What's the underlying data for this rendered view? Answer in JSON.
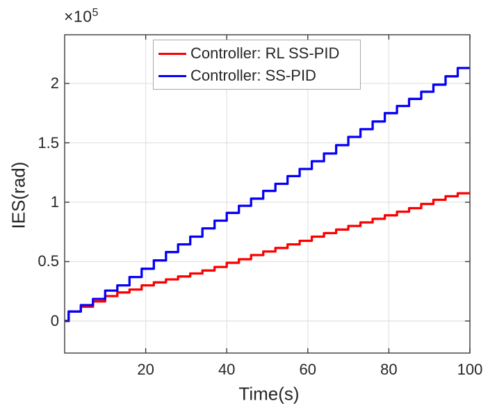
{
  "figure": {
    "background": "#ffffff",
    "axis_color": "#3a3a3a",
    "grid_color": "#e2e2e2",
    "text_color": "#262626"
  },
  "chart_data": {
    "type": "line",
    "subtype": "staircase",
    "title": "",
    "xlabel": "Time(s)",
    "ylabel": "IES(rad)",
    "y_exponent_prefix": "×10",
    "y_exponent": "5",
    "y_unit_scale": 100000,
    "xlim": [
      0,
      100
    ],
    "ylim_e5": [
      -0.27,
      2.41
    ],
    "xticks": [
      20,
      40,
      60,
      80,
      100
    ],
    "yticks_e5": [
      0,
      0.5,
      1,
      1.5,
      2
    ],
    "ytick_labels": [
      "0",
      "0.5",
      "1",
      "1.5",
      "2"
    ],
    "grid": true,
    "legend": {
      "location": "inside-top-left",
      "border_color": "#a6a6a6"
    },
    "x_end": 100,
    "series": [
      {
        "name": "Controller: RL SS-PID",
        "color": "#fa0000",
        "step_times": [
          0,
          1,
          4,
          7,
          10,
          13,
          16,
          19,
          22,
          25,
          28,
          31,
          34,
          37,
          40,
          43,
          46,
          49,
          52,
          55,
          58,
          61,
          64,
          67,
          70,
          73,
          76,
          79,
          82,
          85,
          88,
          91,
          94,
          97
        ],
        "step_values_e5": [
          0,
          0.08,
          0.12,
          0.165,
          0.21,
          0.24,
          0.265,
          0.3,
          0.325,
          0.35,
          0.375,
          0.4,
          0.425,
          0.455,
          0.49,
          0.52,
          0.555,
          0.585,
          0.615,
          0.645,
          0.675,
          0.71,
          0.74,
          0.77,
          0.8,
          0.83,
          0.86,
          0.89,
          0.92,
          0.95,
          0.985,
          1.02,
          1.05,
          1.075
        ]
      },
      {
        "name": "Controller: SS-PID",
        "color": "#0600f5",
        "step_times": [
          0,
          1,
          4,
          7,
          10,
          13,
          16,
          19,
          22,
          25,
          28,
          31,
          34,
          37,
          40,
          43,
          46,
          49,
          52,
          55,
          58,
          61,
          64,
          67,
          70,
          73,
          76,
          79,
          82,
          85,
          88,
          91,
          94,
          97
        ],
        "step_values_e5": [
          0,
          0.08,
          0.134,
          0.186,
          0.256,
          0.3,
          0.37,
          0.44,
          0.51,
          0.58,
          0.645,
          0.71,
          0.78,
          0.845,
          0.91,
          0.97,
          1.03,
          1.095,
          1.155,
          1.22,
          1.28,
          1.345,
          1.41,
          1.48,
          1.55,
          1.615,
          1.68,
          1.75,
          1.81,
          1.87,
          1.93,
          1.99,
          2.06,
          2.13
        ]
      }
    ]
  }
}
